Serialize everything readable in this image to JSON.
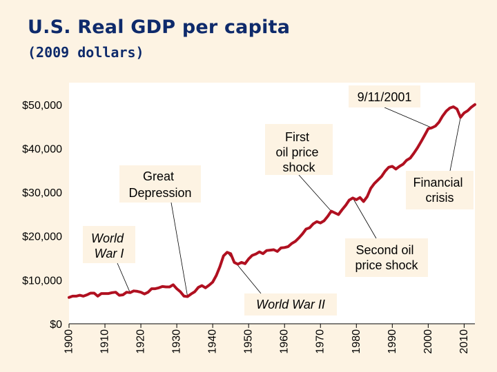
{
  "chart_data": {
    "type": "line",
    "title": "U.S. Real GDP per capita",
    "subtitle": "(2009 dollars)",
    "xlabel": "",
    "ylabel": "",
    "xlim": [
      1900,
      2013
    ],
    "ylim": [
      0,
      55000
    ],
    "x_ticks": [
      "1900",
      "1910",
      "1920",
      "1930",
      "1940",
      "1950",
      "1960",
      "1970",
      "1980",
      "1990",
      "2000",
      "2010"
    ],
    "y_ticks": [
      "$0",
      "$10,000",
      "$20,000",
      "$30,000",
      "$40,000",
      "$50,000"
    ],
    "line_color": "#b01020",
    "series": [
      {
        "name": "",
        "points": [
          [
            1900,
            6000
          ],
          [
            1901,
            6300
          ],
          [
            1902,
            6300
          ],
          [
            1903,
            6500
          ],
          [
            1904,
            6300
          ],
          [
            1905,
            6600
          ],
          [
            1906,
            7000
          ],
          [
            1907,
            7000
          ],
          [
            1908,
            6300
          ],
          [
            1909,
            6900
          ],
          [
            1910,
            6900
          ],
          [
            1911,
            6900
          ],
          [
            1912,
            7100
          ],
          [
            1913,
            7200
          ],
          [
            1914,
            6500
          ],
          [
            1915,
            6600
          ],
          [
            1916,
            7200
          ],
          [
            1917,
            7100
          ],
          [
            1918,
            7500
          ],
          [
            1919,
            7400
          ],
          [
            1920,
            7200
          ],
          [
            1921,
            6800
          ],
          [
            1922,
            7200
          ],
          [
            1923,
            8000
          ],
          [
            1924,
            8000
          ],
          [
            1925,
            8200
          ],
          [
            1926,
            8500
          ],
          [
            1927,
            8400
          ],
          [
            1928,
            8400
          ],
          [
            1929,
            8900
          ],
          [
            1930,
            8000
          ],
          [
            1931,
            7300
          ],
          [
            1932,
            6300
          ],
          [
            1933,
            6200
          ],
          [
            1934,
            6800
          ],
          [
            1935,
            7300
          ],
          [
            1936,
            8300
          ],
          [
            1937,
            8700
          ],
          [
            1938,
            8200
          ],
          [
            1939,
            8800
          ],
          [
            1940,
            9500
          ],
          [
            1941,
            11000
          ],
          [
            1942,
            13000
          ],
          [
            1943,
            15500
          ],
          [
            1944,
            16300
          ],
          [
            1945,
            16000
          ],
          [
            1946,
            14000
          ],
          [
            1947,
            13600
          ],
          [
            1948,
            14000
          ],
          [
            1949,
            13700
          ],
          [
            1950,
            14800
          ],
          [
            1951,
            15600
          ],
          [
            1952,
            15900
          ],
          [
            1953,
            16400
          ],
          [
            1954,
            16000
          ],
          [
            1955,
            16700
          ],
          [
            1956,
            16800
          ],
          [
            1957,
            16900
          ],
          [
            1958,
            16500
          ],
          [
            1959,
            17300
          ],
          [
            1960,
            17400
          ],
          [
            1961,
            17600
          ],
          [
            1962,
            18300
          ],
          [
            1963,
            18800
          ],
          [
            1964,
            19600
          ],
          [
            1965,
            20500
          ],
          [
            1966,
            21600
          ],
          [
            1967,
            21900
          ],
          [
            1968,
            22800
          ],
          [
            1969,
            23300
          ],
          [
            1970,
            23000
          ],
          [
            1971,
            23500
          ],
          [
            1972,
            24500
          ],
          [
            1973,
            25700
          ],
          [
            1974,
            25300
          ],
          [
            1975,
            24900
          ],
          [
            1976,
            26000
          ],
          [
            1977,
            27000
          ],
          [
            1978,
            28200
          ],
          [
            1979,
            28700
          ],
          [
            1980,
            28300
          ],
          [
            1981,
            28800
          ],
          [
            1982,
            27900
          ],
          [
            1983,
            29000
          ],
          [
            1984,
            30900
          ],
          [
            1985,
            32000
          ],
          [
            1986,
            32800
          ],
          [
            1987,
            33600
          ],
          [
            1988,
            34800
          ],
          [
            1989,
            35700
          ],
          [
            1990,
            35900
          ],
          [
            1991,
            35300
          ],
          [
            1992,
            35900
          ],
          [
            1993,
            36400
          ],
          [
            1994,
            37300
          ],
          [
            1995,
            37800
          ],
          [
            1996,
            38900
          ],
          [
            1997,
            40100
          ],
          [
            1998,
            41500
          ],
          [
            1999,
            43000
          ],
          [
            2000,
            44500
          ],
          [
            2001,
            44700
          ],
          [
            2002,
            45100
          ],
          [
            2003,
            46000
          ],
          [
            2004,
            47400
          ],
          [
            2005,
            48500
          ],
          [
            2006,
            49200
          ],
          [
            2007,
            49500
          ],
          [
            2008,
            49000
          ],
          [
            2009,
            47100
          ],
          [
            2010,
            48100
          ],
          [
            2011,
            48600
          ],
          [
            2012,
            49400
          ],
          [
            2013,
            50000
          ]
        ]
      }
    ],
    "annotations": [
      {
        "text": "9/11/2001",
        "x": 2001,
        "y": 44700
      },
      {
        "text": "First oil price shock",
        "x": 1973,
        "y": 25700
      },
      {
        "text": "Great Depression",
        "x": 1933,
        "y": 6200
      },
      {
        "text": "World War I",
        "x": 1917,
        "y": 7100
      },
      {
        "text": "World War II",
        "x": 1944,
        "y": 16300
      },
      {
        "text": "Second oil price shock",
        "x": 1979,
        "y": 28700
      },
      {
        "text": "Financial crisis",
        "x": 2009,
        "y": 47100
      }
    ],
    "grid": false,
    "legend": "none"
  }
}
